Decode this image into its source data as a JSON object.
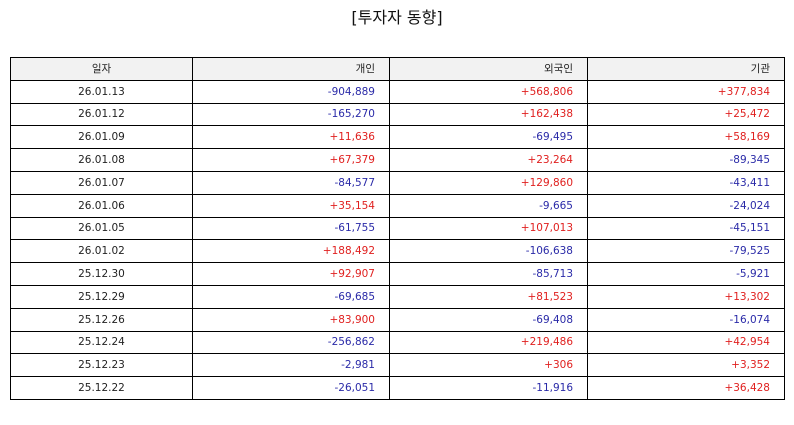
{
  "title": "[투자자 동향]",
  "colors": {
    "positive": "#e0201f",
    "negative": "#2a2aa8",
    "header_bg": "#f2f2f2"
  },
  "table": {
    "headers": [
      "일자",
      "개인",
      "외국인",
      "기관"
    ],
    "rows": [
      [
        "26.01.13",
        "-904,889",
        "+568,806",
        "+377,834"
      ],
      [
        "26.01.12",
        "-165,270",
        "+162,438",
        "+25,472"
      ],
      [
        "26.01.09",
        "+11,636",
        "-69,495",
        "+58,169"
      ],
      [
        "26.01.08",
        "+67,379",
        "+23,264",
        "-89,345"
      ],
      [
        "26.01.07",
        "-84,577",
        "+129,860",
        "-43,411"
      ],
      [
        "26.01.06",
        "+35,154",
        "-9,665",
        "-24,024"
      ],
      [
        "26.01.05",
        "-61,755",
        "+107,013",
        "-45,151"
      ],
      [
        "26.01.02",
        "+188,492",
        "-106,638",
        "-79,525"
      ],
      [
        "25.12.30",
        "+92,907",
        "-85,713",
        "-5,921"
      ],
      [
        "25.12.29",
        "-69,685",
        "+81,523",
        "+13,302"
      ],
      [
        "25.12.26",
        "+83,900",
        "-69,408",
        "-16,074"
      ],
      [
        "25.12.24",
        "-256,862",
        "+219,486",
        "+42,954"
      ],
      [
        "25.12.23",
        "-2,981",
        "+306",
        "+3,352"
      ],
      [
        "25.12.22",
        "-26,051",
        "-11,916",
        "+36,428"
      ]
    ]
  }
}
